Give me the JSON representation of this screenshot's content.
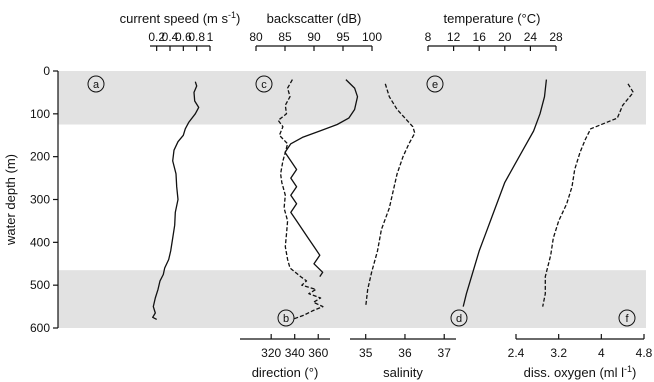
{
  "chart_data": {
    "type": "line",
    "ylabel": "water depth (m)",
    "ylim": [
      0,
      600
    ],
    "yticks": [
      0,
      100,
      200,
      300,
      400,
      500,
      600
    ],
    "shaded_depth_ranges": [
      [
        0,
        125
      ],
      [
        465,
        600
      ]
    ],
    "panels": [
      {
        "letter_top": "a",
        "letter_bottom": "b",
        "top_axis": {
          "label": "current speed (m s",
          "label_sup": "-1",
          "label_end": ")",
          "ticks": [
            "0.2",
            "0.4",
            "0.6",
            "0.8",
            "1"
          ],
          "tick_values": [
            0.2,
            0.4,
            0.6,
            0.8,
            1.0
          ],
          "range": [
            0.1,
            1.0
          ]
        },
        "bottom_axis": {
          "label": "direction (°)",
          "ticks": [
            "320",
            "340",
            "360"
          ],
          "tick_values": [
            320,
            340,
            360
          ],
          "range": [
            293.5,
            370
          ]
        },
        "series": [
          {
            "style": "solid",
            "axis": "top",
            "points": [
              [
                0.78,
                25
              ],
              [
                0.8,
                35
              ],
              [
                0.76,
                50
              ],
              [
                0.77,
                70
              ],
              [
                0.83,
                85
              ],
              [
                0.78,
                100
              ],
              [
                0.68,
                120
              ],
              [
                0.63,
                135
              ],
              [
                0.6,
                150
              ],
              [
                0.52,
                165
              ],
              [
                0.46,
                185
              ],
              [
                0.44,
                210
              ],
              [
                0.49,
                240
              ],
              [
                0.5,
                270
              ],
              [
                0.52,
                300
              ],
              [
                0.48,
                330
              ],
              [
                0.47,
                360
              ],
              [
                0.44,
                390
              ],
              [
                0.41,
                420
              ],
              [
                0.38,
                440
              ],
              [
                0.32,
                460
              ],
              [
                0.3,
                475
              ],
              [
                0.25,
                490
              ],
              [
                0.22,
                510
              ],
              [
                0.18,
                530
              ],
              [
                0.15,
                550
              ],
              [
                0.18,
                565
              ],
              [
                0.14,
                575
              ],
              [
                0.2,
                580
              ]
            ]
          },
          {
            "style": "dashed",
            "axis": "bottom",
            "points": [
              [
                338,
                20
              ],
              [
                334,
                40
              ],
              [
                336,
                60
              ],
              [
                332,
                80
              ],
              [
                333,
                100
              ],
              [
                326,
                115
              ],
              [
                330,
                130
              ],
              [
                327,
                150
              ],
              [
                334,
                170
              ],
              [
                332,
                190
              ],
              [
                330,
                210
              ],
              [
                328,
                240
              ],
              [
                329,
                260
              ],
              [
                332,
                290
              ],
              [
                331,
                320
              ],
              [
                334,
                350
              ],
              [
                333,
                380
              ],
              [
                332,
                410
              ],
              [
                334,
                440
              ],
              [
                336,
                460
              ],
              [
                345,
                480
              ],
              [
                350,
                490
              ],
              [
                346,
                500
              ],
              [
                358,
                510
              ],
              [
                352,
                520
              ],
              [
                362,
                530
              ],
              [
                356,
                540
              ],
              [
                364,
                550
              ],
              [
                355,
                560
              ],
              [
                348,
                570
              ],
              [
                338,
                580
              ]
            ]
          }
        ]
      },
      {
        "letter_top": "c",
        "letter_bottom": null,
        "top_axis": {
          "label": "backscatter (dB)",
          "ticks": [
            "80",
            "85",
            "90",
            "95",
            "100"
          ],
          "tick_values": [
            80,
            85,
            90,
            95,
            100
          ],
          "range": [
            80,
            100
          ]
        },
        "bottom_axis": null,
        "series": [
          {
            "style": "solid",
            "axis": "top",
            "points": [
              [
                95.5,
                20
              ],
              [
                97,
                40
              ],
              [
                97.5,
                60
              ],
              [
                97,
                90
              ],
              [
                96,
                110
              ],
              [
                94,
                125
              ],
              [
                91,
                140
              ],
              [
                88,
                155
              ],
              [
                86,
                170
              ],
              [
                85,
                190
              ],
              [
                86,
                210
              ],
              [
                87,
                230
              ],
              [
                86,
                250
              ],
              [
                87,
                270
              ],
              [
                86,
                290
              ],
              [
                87,
                310
              ],
              [
                86,
                330
              ],
              [
                87,
                350
              ],
              [
                88,
                370
              ],
              [
                89,
                390
              ],
              [
                90,
                410
              ],
              [
                91,
                430
              ],
              [
                90,
                450
              ],
              [
                91.5,
                470
              ],
              [
                91,
                480
              ]
            ]
          }
        ]
      },
      {
        "letter_top": null,
        "letter_bottom": "d",
        "top_axis": null,
        "bottom_axis": {
          "label": "salinity",
          "ticks": [
            "35",
            "36",
            "37"
          ],
          "tick_values": [
            35,
            36,
            37
          ],
          "range": [
            34.6,
            37.3
          ]
        },
        "series": [
          {
            "style": "dashed",
            "axis": "bottom",
            "points": [
              [
                35.5,
                30
              ],
              [
                35.6,
                60
              ],
              [
                35.8,
                90
              ],
              [
                36,
                110
              ],
              [
                36.2,
                130
              ],
              [
                36.25,
                145
              ],
              [
                36.1,
                170
              ],
              [
                35.95,
                200
              ],
              [
                35.8,
                240
              ],
              [
                35.7,
                280
              ],
              [
                35.6,
                320
              ],
              [
                35.4,
                370
              ],
              [
                35.3,
                420
              ],
              [
                35.15,
                470
              ],
              [
                35.05,
                510
              ],
              [
                35,
                550
              ]
            ]
          }
        ]
      },
      {
        "letter_top": "e",
        "letter_bottom": null,
        "top_axis": {
          "label": "temperature (°C)",
          "ticks": [
            "8",
            "12",
            "16",
            "20",
            "24",
            "28"
          ],
          "tick_values": [
            8,
            12,
            16,
            20,
            24,
            28
          ],
          "range": [
            8,
            28
          ]
        },
        "bottom_axis": null,
        "series": [
          {
            "style": "solid",
            "axis": "top",
            "points": [
              [
                26.5,
                20
              ],
              [
                26.2,
                60
              ],
              [
                25.5,
                100
              ],
              [
                24.5,
                140
              ],
              [
                23,
                180
              ],
              [
                21.5,
                220
              ],
              [
                20,
                260
              ],
              [
                19,
                300
              ],
              [
                18,
                340
              ],
              [
                17,
                380
              ],
              [
                16,
                420
              ],
              [
                15,
                470
              ],
              [
                14,
                520
              ],
              [
                13.5,
                550
              ]
            ]
          }
        ]
      },
      {
        "letter_top": null,
        "letter_bottom": "f",
        "top_axis": null,
        "bottom_axis": {
          "label": "diss. oxygen (ml l",
          "label_sup": "-1",
          "label_end": ")",
          "ticks": [
            "2.4",
            "3.2",
            "4",
            "4.8"
          ],
          "tick_values": [
            2.4,
            3.2,
            4.0,
            4.8
          ],
          "range": [
            2.4,
            4.8
          ]
        },
        "series": [
          {
            "style": "dashed",
            "axis": "bottom",
            "points": [
              [
                4.5,
                30
              ],
              [
                4.6,
                50
              ],
              [
                4.4,
                80
              ],
              [
                4.3,
                110
              ],
              [
                3.8,
                135
              ],
              [
                3.7,
                160
              ],
              [
                3.6,
                190
              ],
              [
                3.5,
                230
              ],
              [
                3.45,
                270
              ],
              [
                3.35,
                310
              ],
              [
                3.2,
                350
              ],
              [
                3.1,
                390
              ],
              [
                3.05,
                430
              ],
              [
                2.95,
                480
              ],
              [
                2.95,
                520
              ],
              [
                2.9,
                550
              ]
            ]
          }
        ]
      }
    ]
  }
}
